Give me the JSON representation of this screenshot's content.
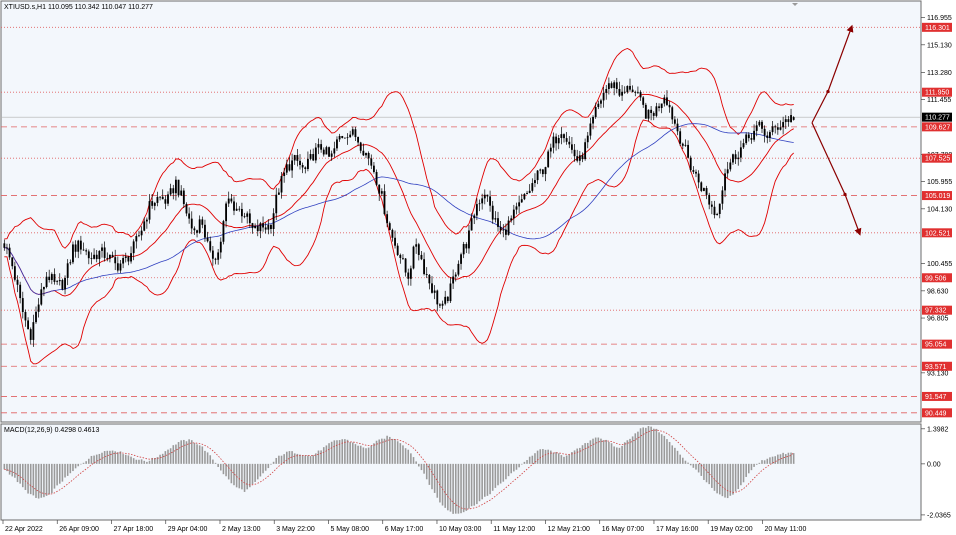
{
  "header": {
    "symbol_line": "XTIUSD.s,H1  110.095 110.342 110.047 110.277",
    "macd_label": "MACD(12,26,9) 0.4298 0.4613"
  },
  "colors": {
    "background": "#ffffff",
    "plot_bg": "#f3f7fc",
    "candle": "#000000",
    "bollinger": "#e00000",
    "ma": "#3040c0",
    "macd_hist": "#9a9a9a",
    "macd_signal": "#d04040",
    "level_line": "#e06060",
    "level_label_bg": "#e03030",
    "current_label_bg": "#000000",
    "arrow": "#8b0000"
  },
  "chart_data": [
    {
      "type": "line",
      "subtype": "candlestick",
      "title": "XTIUSD.s,H1",
      "ohlc_last": {
        "open": 110.095,
        "high": 110.342,
        "low": 110.047,
        "close": 110.277
      },
      "ylim": [
        89.9,
        118.0
      ],
      "y_ticks": [
        "116.955",
        "115.130",
        "113.280",
        "111.455",
        "107.780",
        "105.955",
        "104.130",
        "100.455",
        "98.630",
        "96.805",
        "93.130"
      ],
      "y_tick_values": [
        116.955,
        115.13,
        113.28,
        111.455,
        107.78,
        105.955,
        104.13,
        100.455,
        98.63,
        96.805,
        93.13
      ],
      "x_ticks": [
        "22 Apr 2022",
        "26 Apr 09:00",
        "27 Apr 18:00",
        "29 Apr 04:00",
        "2 May 13:00",
        "3 May 22:00",
        "5 May 08:00",
        "6 May 17:00",
        "10 May 03:00",
        "11 May 12:00",
        "12 May 21:00",
        "16 May 07:00",
        "17 May 16:00",
        "19 May 02:00",
        "20 May 11:00"
      ],
      "current_price": "110.277",
      "current_price_value": 110.277,
      "levels": [
        {
          "label": "116.301",
          "value": 116.301,
          "style": "dotted"
        },
        {
          "label": "111.950",
          "value": 111.95,
          "style": "dotted"
        },
        {
          "label": "109.627",
          "value": 109.627,
          "style": "dashed"
        },
        {
          "label": "107.525",
          "value": 107.525,
          "style": "dotted"
        },
        {
          "label": "105.019",
          "value": 105.019,
          "style": "dashed"
        },
        {
          "label": "102.521",
          "value": 102.521,
          "style": "dotted"
        },
        {
          "label": "99.506",
          "value": 99.506,
          "style": "dotted"
        },
        {
          "label": "97.332",
          "value": 97.332,
          "style": "dotted"
        },
        {
          "label": "95.054",
          "value": 95.054,
          "style": "dashed"
        },
        {
          "label": "93.571",
          "value": 93.571,
          "style": "dashed"
        },
        {
          "label": "91.547",
          "value": 91.547,
          "style": "dashed"
        },
        {
          "label": "90.449",
          "value": 90.449,
          "style": "dashed"
        }
      ],
      "close_path": [
        101.8,
        100.2,
        97.5,
        95.6,
        97.8,
        99.8,
        98.9,
        99.2,
        101.5,
        101.7,
        100.8,
        101.2,
        101.0,
        100.3,
        100.6,
        101.4,
        102.8,
        104.4,
        104.9,
        104.6,
        105.9,
        104.3,
        102.6,
        103.4,
        100.9,
        101.2,
        104.8,
        104.2,
        103.8,
        102.6,
        102.9,
        103.0,
        105.5,
        107.0,
        107.4,
        106.6,
        107.8,
        108.3,
        107.4,
        108.9,
        109.3,
        109.0,
        108.0,
        106.9,
        104.9,
        102.5,
        101.2,
        99.5,
        101.9,
        100.0,
        98.6,
        97.3,
        98.7,
        100.9,
        102.0,
        104.4,
        105.3,
        103.5,
        102.4,
        103.3,
        104.3,
        105.2,
        106.2,
        107.0,
        108.6,
        109.6,
        108.2,
        107.2,
        108.8,
        110.8,
        112.1,
        112.6,
        111.7,
        112.4,
        111.4,
        110.3,
        110.8,
        111.9,
        110.1,
        108.6,
        107.0,
        105.9,
        104.8,
        103.6,
        106.7,
        107.6,
        108.3,
        109.1,
        109.6,
        109.0,
        109.6,
        110.1,
        110.277
      ]
    },
    {
      "type": "bar",
      "subtype": "macd",
      "title": "MACD(12,26,9)",
      "values_last": {
        "main": 0.4298,
        "signal": 0.4613
      },
      "ylim": [
        -2.2,
        1.55
      ],
      "y_ticks": [
        "1.3982",
        "0.00",
        "-2.0365"
      ],
      "y_tick_values": [
        1.3982,
        0,
        -2.0365
      ],
      "histogram_path": [
        -0.2,
        -0.6,
        -1.1,
        -1.4,
        -1.3,
        -0.8,
        -0.4,
        0.0,
        0.3,
        0.5,
        0.55,
        0.4,
        0.2,
        0.1,
        0.3,
        0.6,
        0.9,
        0.95,
        0.7,
        0.2,
        -0.4,
        -0.9,
        -1.1,
        -0.7,
        -0.2,
        0.3,
        0.5,
        0.4,
        0.3,
        0.6,
        0.9,
        1.0,
        0.8,
        0.6,
        0.9,
        1.1,
        0.9,
        0.5,
        -0.2,
        -1.0,
        -1.7,
        -2.0,
        -1.9,
        -1.6,
        -1.3,
        -0.9,
        -0.5,
        -0.1,
        0.3,
        0.6,
        0.5,
        0.3,
        0.5,
        0.8,
        1.1,
        0.9,
        0.6,
        1.0,
        1.4,
        1.5,
        1.2,
        0.7,
        0.2,
        -0.2,
        -0.7,
        -1.2,
        -1.4,
        -1.0,
        -0.3,
        0.1,
        0.3,
        0.4,
        0.45
      ]
    }
  ]
}
